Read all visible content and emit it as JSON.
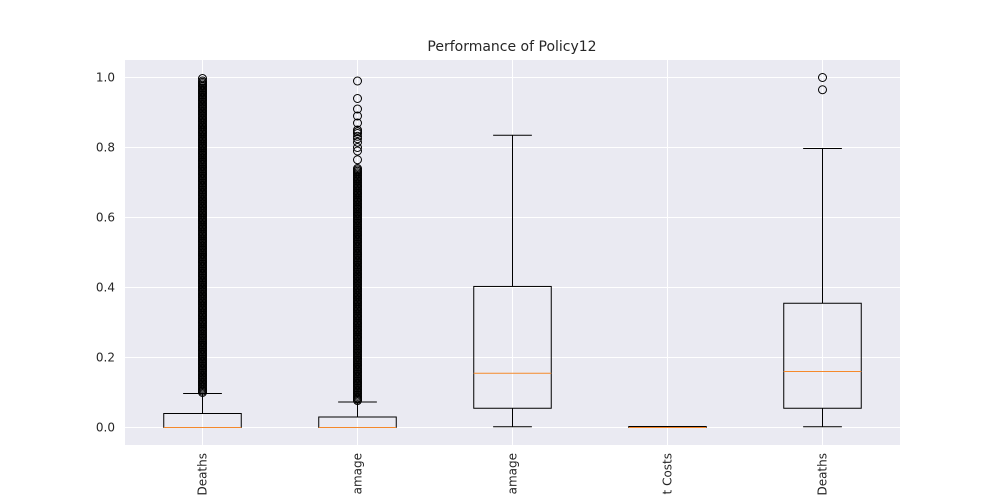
{
  "chart_data": {
    "type": "boxplot",
    "title": "Performance of Policy12",
    "xlabel": "",
    "ylabel": "",
    "categories": [
      "Deaths",
      "Damage",
      "Damage",
      "Costs",
      "Deaths"
    ],
    "category_labels_visible": [
      "Deaths",
      "amage",
      "amage",
      "t Costs",
      "Deaths"
    ],
    "ylim": [
      -0.05,
      1.05
    ],
    "yticks": [
      0.0,
      0.2,
      0.4,
      0.6,
      0.8,
      1.0
    ],
    "ytick_labels": [
      "0.0",
      "0.2",
      "0.4",
      "0.6",
      "0.8",
      "1.0"
    ],
    "grid": true,
    "colors": {
      "background": "#eaeaf2",
      "grid": "#ffffff",
      "box": "#000000",
      "median": "#f5892b"
    },
    "series": [
      {
        "q1": 0.0,
        "median": 0.0,
        "q3": 0.04,
        "whisker_low": 0.0,
        "whisker_high": 0.097,
        "outlier_range": [
          0.1,
          0.99
        ],
        "outliers_extra": [
          0.997
        ]
      },
      {
        "q1": 0.0,
        "median": 0.0,
        "q3": 0.03,
        "whisker_low": 0.0,
        "whisker_high": 0.073,
        "outlier_range": [
          0.077,
          0.74
        ],
        "outliers_extra": [
          0.765,
          0.79,
          0.8,
          0.815,
          0.825,
          0.832,
          0.84,
          0.845,
          0.85,
          0.87,
          0.89,
          0.91,
          0.94,
          0.99
        ]
      },
      {
        "q1": 0.055,
        "median": 0.155,
        "q3": 0.403,
        "whisker_low": 0.002,
        "whisker_high": 0.835,
        "outliers_extra": []
      },
      {
        "q1": 0.0,
        "median": 0.0,
        "q3": 0.0,
        "whisker_low": 0.0,
        "whisker_high": 0.0,
        "outliers_extra": []
      },
      {
        "q1": 0.055,
        "median": 0.16,
        "q3": 0.355,
        "whisker_low": 0.002,
        "whisker_high": 0.797,
        "outliers_extra": [
          0.965,
          1.0
        ]
      }
    ]
  }
}
